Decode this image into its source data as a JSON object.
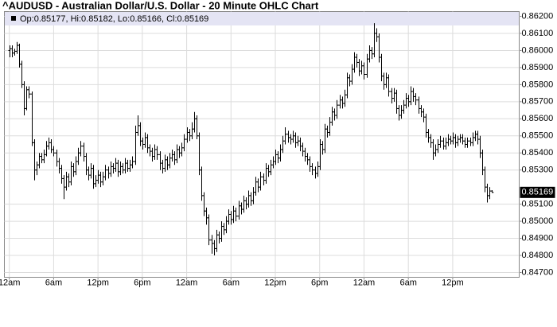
{
  "chart_data": {
    "type": "ohlc",
    "title": "^AUDUSD - Australian Dollar/U.S. Dollar - 20 Minute OHLC Chart",
    "legend": "Op:0.85177, Hi:0.85182, Lo:0.85166, Cl:0.85169",
    "last_price": {
      "value": 0.85169,
      "label": "0.85169"
    },
    "color": "#000000",
    "grid": true,
    "xlim": [
      -2,
      207
    ],
    "xticks": [
      {
        "value": 0,
        "label": "12am"
      },
      {
        "value": 18,
        "label": "6am"
      },
      {
        "value": 36,
        "label": "12pm"
      },
      {
        "value": 54,
        "label": "6pm"
      },
      {
        "value": 72,
        "label": "12am"
      },
      {
        "value": 90,
        "label": "6am"
      },
      {
        "value": 108,
        "label": "12pm"
      },
      {
        "value": 126,
        "label": "6pm"
      },
      {
        "value": 144,
        "label": "12am"
      },
      {
        "value": 162,
        "label": "6am"
      },
      {
        "value": 180,
        "label": "12pm"
      }
    ],
    "ylim": [
      0.84672,
      0.86228
    ],
    "yticks": [
      {
        "value": 0.862,
        "label": "0.86200"
      },
      {
        "value": 0.861,
        "label": "0.86100"
      },
      {
        "value": 0.86,
        "label": "0.86000"
      },
      {
        "value": 0.859,
        "label": "0.85900"
      },
      {
        "value": 0.858,
        "label": "0.85800"
      },
      {
        "value": 0.857,
        "label": "0.85700"
      },
      {
        "value": 0.856,
        "label": "0.85600"
      },
      {
        "value": 0.855,
        "label": "0.85500"
      },
      {
        "value": 0.854,
        "label": "0.85400"
      },
      {
        "value": 0.853,
        "label": "0.85300"
      },
      {
        "value": 0.851,
        "label": "0.85100"
      },
      {
        "value": 0.85,
        "label": "0.85000"
      },
      {
        "value": 0.849,
        "label": "0.84900"
      },
      {
        "value": 0.848,
        "label": "0.84800"
      },
      {
        "value": 0.847,
        "label": "0.84700"
      }
    ],
    "ohlc": [
      [
        0.86,
        0.8603,
        0.8596,
        0.8601
      ],
      [
        0.8601,
        0.8603,
        0.8596,
        0.85985
      ],
      [
        0.85985,
        0.8601,
        0.8597,
        0.85995
      ],
      [
        0.85995,
        0.8605,
        0.8598,
        0.8603
      ],
      [
        0.8603,
        0.8604,
        0.859,
        0.8592
      ],
      [
        0.8592,
        0.8594,
        0.8578,
        0.858
      ],
      [
        0.858,
        0.8582,
        0.8562,
        0.8566
      ],
      [
        0.8566,
        0.8579,
        0.8565,
        0.8577
      ],
      [
        0.8577,
        0.8579,
        0.8572,
        0.85745
      ],
      [
        0.85745,
        0.8576,
        0.8544,
        0.8546
      ],
      [
        0.8546,
        0.8548,
        0.8524,
        0.853
      ],
      [
        0.853,
        0.8535,
        0.8527,
        0.8533
      ],
      [
        0.8533,
        0.854,
        0.8531,
        0.8538
      ],
      [
        0.8538,
        0.854,
        0.8534,
        0.8536
      ],
      [
        0.8536,
        0.8542,
        0.8534,
        0.8539
      ],
      [
        0.8539,
        0.8547,
        0.8538,
        0.8544
      ],
      [
        0.8544,
        0.8549,
        0.8542,
        0.8546
      ],
      [
        0.8546,
        0.8548,
        0.854,
        0.8542
      ],
      [
        0.8542,
        0.8544,
        0.8538,
        0.854
      ],
      [
        0.854,
        0.8542,
        0.8532,
        0.8535
      ],
      [
        0.8535,
        0.8537,
        0.8528,
        0.8531
      ],
      [
        0.8531,
        0.8533,
        0.8522,
        0.8525
      ],
      [
        0.8525,
        0.8527,
        0.8513,
        0.852
      ],
      [
        0.852,
        0.8529,
        0.8518,
        0.8526
      ],
      [
        0.8526,
        0.8528,
        0.852,
        0.8523
      ],
      [
        0.8523,
        0.8535,
        0.8521,
        0.8532
      ],
      [
        0.8532,
        0.8534,
        0.8526,
        0.8529
      ],
      [
        0.8529,
        0.8538,
        0.8527,
        0.8535
      ],
      [
        0.8535,
        0.8543,
        0.8533,
        0.854
      ],
      [
        0.854,
        0.8547,
        0.8538,
        0.8544
      ],
      [
        0.8544,
        0.8546,
        0.8535,
        0.8538
      ],
      [
        0.8538,
        0.854,
        0.8527,
        0.853
      ],
      [
        0.853,
        0.8532,
        0.8524,
        0.8527
      ],
      [
        0.8527,
        0.8534,
        0.8525,
        0.8531
      ],
      [
        0.8531,
        0.8533,
        0.8519,
        0.8522
      ],
      [
        0.8522,
        0.8527,
        0.852,
        0.8524
      ],
      [
        0.8524,
        0.853,
        0.8522,
        0.8527
      ],
      [
        0.8527,
        0.8529,
        0.852,
        0.8523
      ],
      [
        0.8523,
        0.8529,
        0.8521,
        0.8526
      ],
      [
        0.8526,
        0.8533,
        0.8524,
        0.853
      ],
      [
        0.853,
        0.8532,
        0.8525,
        0.8528
      ],
      [
        0.8528,
        0.8535,
        0.8526,
        0.8532
      ],
      [
        0.8532,
        0.8534,
        0.8528,
        0.8531
      ],
      [
        0.8531,
        0.8537,
        0.8529,
        0.8534
      ],
      [
        0.8534,
        0.8536,
        0.8526,
        0.8529
      ],
      [
        0.8529,
        0.8535,
        0.8527,
        0.8532
      ],
      [
        0.8532,
        0.8534,
        0.8528,
        0.853
      ],
      [
        0.853,
        0.8537,
        0.8528,
        0.8534
      ],
      [
        0.8534,
        0.8536,
        0.8529,
        0.8531
      ],
      [
        0.8531,
        0.8536,
        0.8529,
        0.8533
      ],
      [
        0.8533,
        0.8538,
        0.8531,
        0.8535
      ],
      [
        0.8535,
        0.8556,
        0.8533,
        0.8552
      ],
      [
        0.8552,
        0.8562,
        0.855,
        0.8556
      ],
      [
        0.8556,
        0.8558,
        0.8544,
        0.8547
      ],
      [
        0.8547,
        0.8549,
        0.8542,
        0.8545
      ],
      [
        0.8545,
        0.8552,
        0.8543,
        0.8549
      ],
      [
        0.8549,
        0.8551,
        0.854,
        0.8543
      ],
      [
        0.8543,
        0.8545,
        0.8538,
        0.8541
      ],
      [
        0.8541,
        0.8543,
        0.8535,
        0.8538
      ],
      [
        0.8538,
        0.8545,
        0.8536,
        0.8542
      ],
      [
        0.8542,
        0.8544,
        0.8536,
        0.8539
      ],
      [
        0.8539,
        0.8541,
        0.853,
        0.8534
      ],
      [
        0.8534,
        0.8536,
        0.8528,
        0.8531
      ],
      [
        0.8531,
        0.8539,
        0.8529,
        0.8536
      ],
      [
        0.8536,
        0.8538,
        0.853,
        0.8533
      ],
      [
        0.8533,
        0.854,
        0.8531,
        0.8537
      ],
      [
        0.8537,
        0.8542,
        0.8535,
        0.8539
      ],
      [
        0.8539,
        0.8541,
        0.8533,
        0.8536
      ],
      [
        0.8536,
        0.8545,
        0.8534,
        0.8542
      ],
      [
        0.8542,
        0.8544,
        0.8537,
        0.854
      ],
      [
        0.854,
        0.8546,
        0.8538,
        0.8543
      ],
      [
        0.8543,
        0.8551,
        0.8541,
        0.8548
      ],
      [
        0.8548,
        0.8555,
        0.8546,
        0.8552
      ],
      [
        0.8552,
        0.8554,
        0.8547,
        0.855
      ],
      [
        0.855,
        0.8558,
        0.8548,
        0.8554
      ],
      [
        0.8554,
        0.8564,
        0.8552,
        0.856
      ],
      [
        0.856,
        0.8562,
        0.8548,
        0.855
      ],
      [
        0.855,
        0.8552,
        0.8527,
        0.853
      ],
      [
        0.853,
        0.8532,
        0.8512,
        0.8515
      ],
      [
        0.8515,
        0.8517,
        0.8503,
        0.8506
      ],
      [
        0.8506,
        0.8508,
        0.8498,
        0.8502
      ],
      [
        0.8502,
        0.8504,
        0.8486,
        0.8489
      ],
      [
        0.8489,
        0.8492,
        0.8481,
        0.8487
      ],
      [
        0.8487,
        0.8489,
        0.848,
        0.8484
      ],
      [
        0.8484,
        0.8495,
        0.8482,
        0.8492
      ],
      [
        0.8492,
        0.8494,
        0.8487,
        0.849
      ],
      [
        0.849,
        0.85,
        0.8488,
        0.8497
      ],
      [
        0.8497,
        0.8499,
        0.8492,
        0.8495
      ],
      [
        0.8495,
        0.8503,
        0.8493,
        0.85
      ],
      [
        0.85,
        0.8507,
        0.8498,
        0.8504
      ],
      [
        0.8504,
        0.8506,
        0.8498,
        0.8501
      ],
      [
        0.8501,
        0.8509,
        0.8499,
        0.8506
      ],
      [
        0.8506,
        0.8508,
        0.85,
        0.8503
      ],
      [
        0.8503,
        0.8512,
        0.8501,
        0.8509
      ],
      [
        0.8509,
        0.8511,
        0.8504,
        0.8507
      ],
      [
        0.8507,
        0.8515,
        0.8505,
        0.8512
      ],
      [
        0.8512,
        0.8514,
        0.8507,
        0.851
      ],
      [
        0.851,
        0.8518,
        0.8508,
        0.8515
      ],
      [
        0.8515,
        0.8517,
        0.8509,
        0.8512
      ],
      [
        0.8512,
        0.852,
        0.851,
        0.8517
      ],
      [
        0.8517,
        0.8526,
        0.8515,
        0.8523
      ],
      [
        0.8523,
        0.8525,
        0.8517,
        0.852
      ],
      [
        0.852,
        0.8529,
        0.8518,
        0.8526
      ],
      [
        0.8526,
        0.8528,
        0.8521,
        0.8524
      ],
      [
        0.8524,
        0.8534,
        0.8522,
        0.8531
      ],
      [
        0.8531,
        0.8533,
        0.8526,
        0.8529
      ],
      [
        0.8529,
        0.8536,
        0.8527,
        0.8533
      ],
      [
        0.8533,
        0.8538,
        0.8531,
        0.8535
      ],
      [
        0.8535,
        0.8542,
        0.8533,
        0.8539
      ],
      [
        0.8539,
        0.8541,
        0.8534,
        0.8537
      ],
      [
        0.8537,
        0.8545,
        0.8535,
        0.8542
      ],
      [
        0.8542,
        0.855,
        0.854,
        0.8547
      ],
      [
        0.8547,
        0.8555,
        0.8545,
        0.8551
      ],
      [
        0.8551,
        0.8553,
        0.8546,
        0.8549
      ],
      [
        0.8549,
        0.8551,
        0.8545,
        0.8548
      ],
      [
        0.8548,
        0.8553,
        0.8546,
        0.855
      ],
      [
        0.855,
        0.8552,
        0.8543,
        0.8546
      ],
      [
        0.8546,
        0.855,
        0.8544,
        0.8547
      ],
      [
        0.8547,
        0.8549,
        0.8541,
        0.8544
      ],
      [
        0.8544,
        0.8546,
        0.8538,
        0.8541
      ],
      [
        0.8541,
        0.8543,
        0.8535,
        0.8538
      ],
      [
        0.8538,
        0.854,
        0.8533,
        0.8536
      ],
      [
        0.8536,
        0.8538,
        0.8529,
        0.8532
      ],
      [
        0.8532,
        0.8534,
        0.8527,
        0.853
      ],
      [
        0.853,
        0.8532,
        0.8525,
        0.8528
      ],
      [
        0.8528,
        0.8535,
        0.8526,
        0.8532
      ],
      [
        0.8532,
        0.8548,
        0.853,
        0.8545
      ],
      [
        0.8545,
        0.8547,
        0.8539,
        0.8542
      ],
      [
        0.8542,
        0.8557,
        0.854,
        0.8554
      ],
      [
        0.8554,
        0.8556,
        0.8549,
        0.8552
      ],
      [
        0.8552,
        0.8561,
        0.855,
        0.8558
      ],
      [
        0.8558,
        0.8567,
        0.8556,
        0.8564
      ],
      [
        0.8564,
        0.8566,
        0.8559,
        0.8562
      ],
      [
        0.8562,
        0.8571,
        0.856,
        0.8568
      ],
      [
        0.8568,
        0.8574,
        0.8566,
        0.8571
      ],
      [
        0.8571,
        0.8573,
        0.8566,
        0.8569
      ],
      [
        0.8569,
        0.8577,
        0.8567,
        0.8574
      ],
      [
        0.8574,
        0.8587,
        0.8572,
        0.8584
      ],
      [
        0.8584,
        0.8586,
        0.8579,
        0.8582
      ],
      [
        0.8582,
        0.8592,
        0.858,
        0.8589
      ],
      [
        0.8589,
        0.8599,
        0.8587,
        0.8596
      ],
      [
        0.8596,
        0.8598,
        0.859,
        0.8593
      ],
      [
        0.8593,
        0.8595,
        0.8585,
        0.8588
      ],
      [
        0.8588,
        0.8594,
        0.8586,
        0.8591
      ],
      [
        0.8591,
        0.8593,
        0.8583,
        0.8586
      ],
      [
        0.8586,
        0.8598,
        0.8584,
        0.8595
      ],
      [
        0.8595,
        0.8603,
        0.8593,
        0.86
      ],
      [
        0.86,
        0.8602,
        0.8595,
        0.8598
      ],
      [
        0.8598,
        0.8616,
        0.8596,
        0.861
      ],
      [
        0.861,
        0.8613,
        0.8605,
        0.8608
      ],
      [
        0.8608,
        0.861,
        0.8593,
        0.8596
      ],
      [
        0.8596,
        0.8598,
        0.8582,
        0.8585
      ],
      [
        0.8585,
        0.8587,
        0.8577,
        0.858
      ],
      [
        0.858,
        0.8587,
        0.8578,
        0.8584
      ],
      [
        0.8584,
        0.8586,
        0.8573,
        0.8576
      ],
      [
        0.8576,
        0.8578,
        0.8569,
        0.8572
      ],
      [
        0.8572,
        0.8578,
        0.857,
        0.8575
      ],
      [
        0.8575,
        0.8577,
        0.8563,
        0.8566
      ],
      [
        0.8566,
        0.8568,
        0.8559,
        0.8562
      ],
      [
        0.8562,
        0.8568,
        0.856,
        0.8565
      ],
      [
        0.8565,
        0.8571,
        0.8563,
        0.8568
      ],
      [
        0.8568,
        0.8575,
        0.8566,
        0.8572
      ],
      [
        0.8572,
        0.8574,
        0.8567,
        0.857
      ],
      [
        0.857,
        0.8579,
        0.8568,
        0.8576
      ],
      [
        0.8576,
        0.8578,
        0.857,
        0.8573
      ],
      [
        0.8573,
        0.8575,
        0.8568,
        0.8571
      ],
      [
        0.8571,
        0.8573,
        0.8563,
        0.8566
      ],
      [
        0.8566,
        0.8568,
        0.8561,
        0.8564
      ],
      [
        0.8564,
        0.8566,
        0.8558,
        0.8561
      ],
      [
        0.8561,
        0.8563,
        0.8549,
        0.8552
      ],
      [
        0.8552,
        0.8554,
        0.8546,
        0.8549
      ],
      [
        0.8549,
        0.8551,
        0.8543,
        0.8546
      ],
      [
        0.8546,
        0.8548,
        0.8536,
        0.854
      ],
      [
        0.854,
        0.8545,
        0.8538,
        0.8542
      ],
      [
        0.8542,
        0.8548,
        0.854,
        0.8545
      ],
      [
        0.8545,
        0.855,
        0.8543,
        0.8547
      ],
      [
        0.8547,
        0.8549,
        0.8542,
        0.8544
      ],
      [
        0.8544,
        0.8549,
        0.8542,
        0.8546
      ],
      [
        0.8546,
        0.8551,
        0.8544,
        0.8548
      ],
      [
        0.8548,
        0.855,
        0.8545,
        0.8547
      ],
      [
        0.8547,
        0.8552,
        0.8545,
        0.8549
      ],
      [
        0.8549,
        0.8551,
        0.8543,
        0.8546
      ],
      [
        0.8546,
        0.855,
        0.8544,
        0.8548
      ],
      [
        0.8548,
        0.8551,
        0.8546,
        0.8549
      ],
      [
        0.8549,
        0.8551,
        0.8545,
        0.8547
      ],
      [
        0.8547,
        0.8549,
        0.8543,
        0.8545
      ],
      [
        0.8545,
        0.8549,
        0.8543,
        0.8547
      ],
      [
        0.8547,
        0.8549,
        0.8544,
        0.8546
      ],
      [
        0.8546,
        0.8552,
        0.8544,
        0.8549
      ],
      [
        0.8549,
        0.8553,
        0.8547,
        0.8551
      ],
      [
        0.8551,
        0.8553,
        0.8545,
        0.8548
      ],
      [
        0.8548,
        0.855,
        0.8537,
        0.854
      ],
      [
        0.854,
        0.8542,
        0.8527,
        0.853
      ],
      [
        0.853,
        0.8532,
        0.8517,
        0.852
      ],
      [
        0.852,
        0.8522,
        0.8511,
        0.8515
      ],
      [
        0.8515,
        0.852,
        0.8513,
        0.85177
      ],
      [
        0.85177,
        0.85182,
        0.85166,
        0.85169
      ]
    ]
  }
}
